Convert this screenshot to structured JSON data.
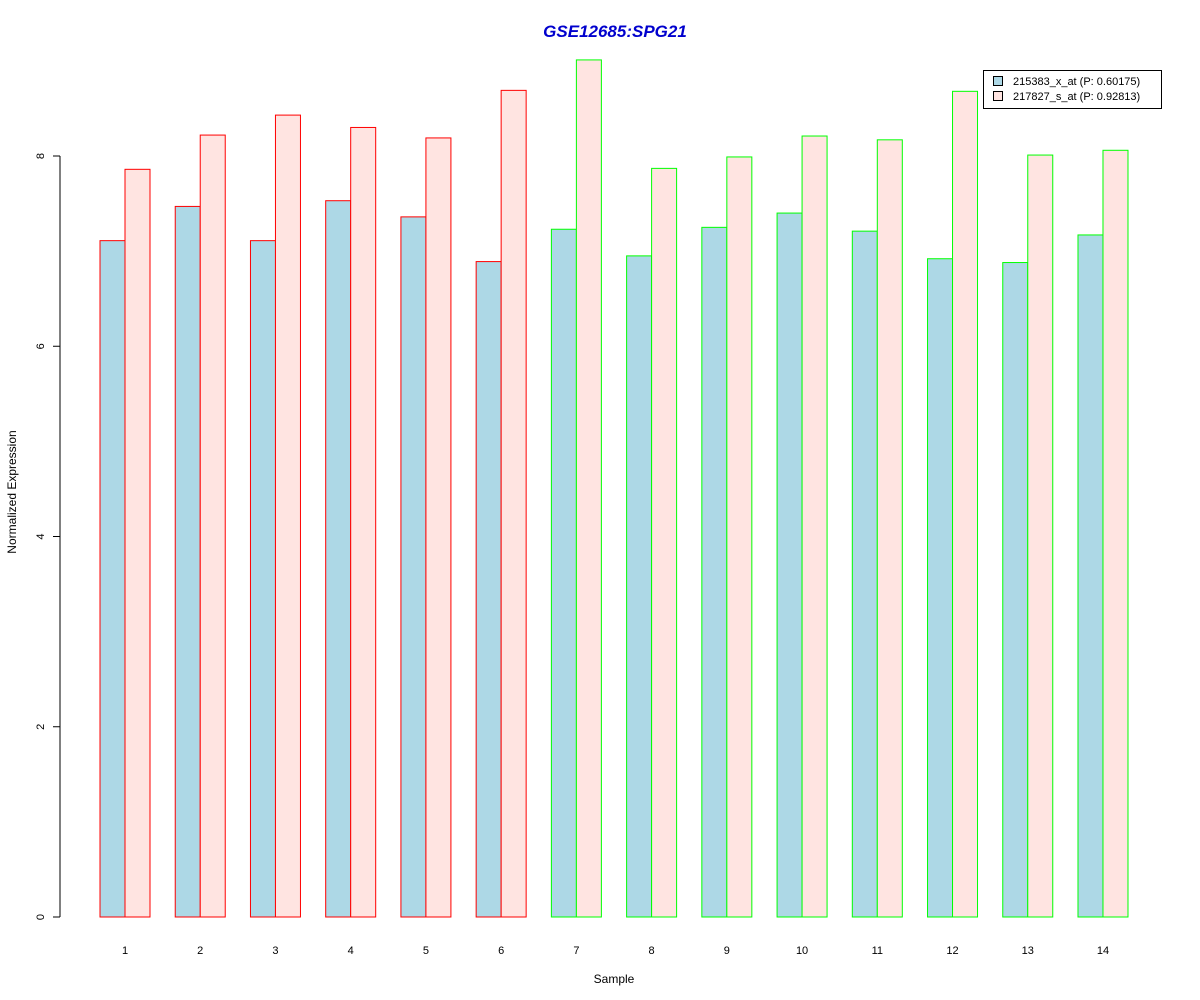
{
  "chart_data": {
    "type": "bar",
    "title": "GSE12685:SPG21",
    "xlabel": "Sample",
    "ylabel": "Normalized Expression",
    "ylim": [
      0,
      9
    ],
    "yticks": [
      0,
      2,
      4,
      6,
      8
    ],
    "categories": [
      "1",
      "2",
      "3",
      "4",
      "5",
      "6",
      "7",
      "8",
      "9",
      "10",
      "11",
      "12",
      "13",
      "14"
    ],
    "group_border_colors": [
      "#ff0000",
      "#ff0000",
      "#ff0000",
      "#ff0000",
      "#ff0000",
      "#ff0000",
      "#00ff00",
      "#00ff00",
      "#00ff00",
      "#00ff00",
      "#00ff00",
      "#00ff00",
      "#00ff00",
      "#00ff00"
    ],
    "series": [
      {
        "name": "215383_x_at (P: 0.60175)",
        "color": "#add8e6",
        "values": [
          7.11,
          7.47,
          7.11,
          7.53,
          7.36,
          6.89,
          7.23,
          6.95,
          7.25,
          7.4,
          7.21,
          6.92,
          6.88,
          7.17
        ]
      },
      {
        "name": "217827_s_at (P: 0.92813)",
        "color": "#ffe4e1",
        "values": [
          7.86,
          8.22,
          8.43,
          8.3,
          8.19,
          8.69,
          9.01,
          7.87,
          7.99,
          8.21,
          8.17,
          8.68,
          8.01,
          8.06
        ]
      }
    ],
    "legend_position": "top-right",
    "grid": false
  }
}
